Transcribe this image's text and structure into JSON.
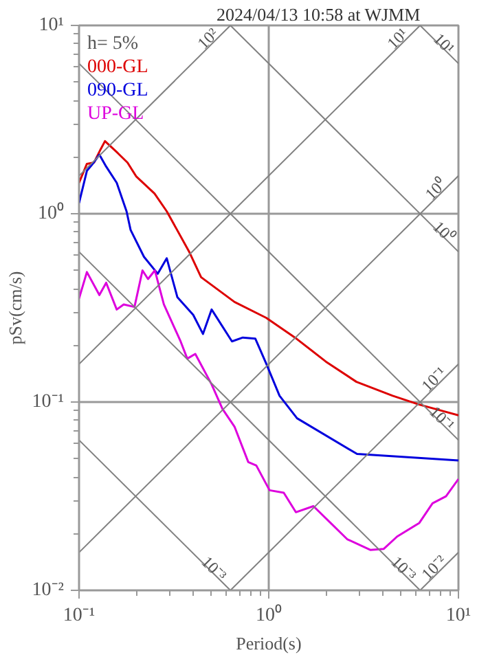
{
  "chart_data": {
    "type": "line",
    "title": "2024/04/13 10:58 at WJMM",
    "xlabel": "Period(s)",
    "ylabel": "pSv(cm/s)",
    "log": "xy",
    "grid": true,
    "legend": "top left",
    "xlim": [
      0.1,
      10
    ],
    "ylim": [
      0.01,
      10
    ],
    "xticks": [
      {
        "value": 0.1,
        "label": "10⁻¹"
      },
      {
        "value": 1,
        "label": "10⁰"
      },
      {
        "value": 10,
        "label": "10¹"
      }
    ],
    "yticks": [
      {
        "value": 0.01,
        "label": "10⁻²"
      },
      {
        "value": 0.1,
        "label": "10⁻¹"
      },
      {
        "value": 1,
        "label": "10⁰"
      },
      {
        "value": 10,
        "label": "10¹"
      }
    ],
    "annotations": [
      "h= 5%",
      {
        "text": "10²",
        "x": 0.628,
        "y": 10
      },
      {
        "text": "10¹",
        "x": 6.28,
        "y": 10
      },
      {
        "text": "10⁰",
        "x": 10,
        "y": 1.59
      },
      {
        "text": "10⁻¹",
        "x": 10,
        "y": 0.159
      },
      {
        "text": "10⁻²",
        "x": 10,
        "y": 0.0159
      },
      {
        "text": "10¹",
        "x": 10,
        "y": 6.28
      },
      {
        "text": "10⁰",
        "x": 10,
        "y": 0.628
      },
      {
        "text": "10⁻¹",
        "x": 10,
        "y": 0.0628
      },
      {
        "text": "10⁻³",
        "x": 6.28,
        "y": 0.01
      },
      {
        "text": "10⁻³",
        "x": 0.628,
        "y": 0.01
      }
    ],
    "series": [
      {
        "name": "000-GL",
        "color": "#dd0000",
        "x": [
          0.1,
          0.11,
          0.12,
          0.13,
          0.137,
          0.16,
          0.18,
          0.2,
          0.25,
          0.29,
          0.38,
          0.44,
          0.66,
          0.97,
          1.4,
          2.0,
          2.9,
          4.5,
          6.2,
          10
        ],
        "values": [
          1.46,
          1.84,
          1.87,
          2.2,
          2.43,
          2.1,
          1.87,
          1.58,
          1.28,
          1.03,
          0.63,
          0.46,
          0.34,
          0.28,
          0.217,
          0.164,
          0.128,
          0.108,
          0.097,
          0.085
        ]
      },
      {
        "name": "090-GL",
        "color": "#0000dd",
        "x": [
          0.1,
          0.11,
          0.118,
          0.128,
          0.139,
          0.158,
          0.178,
          0.187,
          0.22,
          0.26,
          0.29,
          0.33,
          0.4,
          0.45,
          0.5,
          0.64,
          0.73,
          0.85,
          0.97,
          1.14,
          1.41,
          2.92,
          10
        ],
        "values": [
          1.14,
          1.69,
          1.84,
          2.06,
          1.78,
          1.46,
          1.03,
          0.82,
          0.59,
          0.48,
          0.58,
          0.36,
          0.29,
          0.23,
          0.31,
          0.21,
          0.22,
          0.217,
          0.16,
          0.108,
          0.082,
          0.053,
          0.049
        ]
      },
      {
        "name": "UP-GL",
        "color": "#dd00dd",
        "x": [
          0.1,
          0.11,
          0.128,
          0.139,
          0.158,
          0.172,
          0.196,
          0.216,
          0.231,
          0.251,
          0.28,
          0.343,
          0.372,
          0.41,
          0.5,
          0.57,
          0.66,
          0.78,
          0.86,
          1.01,
          1.2,
          1.39,
          1.72,
          2.59,
          3.43,
          4.04,
          4.75,
          6.22,
          7.3,
          8.6,
          10
        ],
        "values": [
          0.355,
          0.49,
          0.37,
          0.43,
          0.31,
          0.33,
          0.32,
          0.5,
          0.45,
          0.5,
          0.33,
          0.21,
          0.17,
          0.18,
          0.124,
          0.092,
          0.074,
          0.048,
          0.046,
          0.034,
          0.033,
          0.026,
          0.028,
          0.0187,
          0.0164,
          0.0166,
          0.0193,
          0.0228,
          0.029,
          0.0316,
          0.039
        ]
      },
      {
        "color": "#808080",
        "x": [
          0.1,
          0.628
        ],
        "values": [
          1.59,
          10
        ]
      },
      {
        "color": "#808080",
        "x": [
          0.1,
          6.28
        ],
        "values": [
          0.159,
          10
        ]
      },
      {
        "color": "#808080",
        "x": [
          0.1,
          10
        ],
        "values": [
          0.0159,
          1.59
        ]
      },
      {
        "color": "#808080",
        "x": [
          0.628,
          10
        ],
        "values": [
          0.01,
          0.159
        ]
      },
      {
        "color": "#808080",
        "x": [
          6.28,
          10
        ],
        "values": [
          0.01,
          0.0159
        ]
      },
      {
        "color": "#808080",
        "x": [
          6.28,
          10
        ],
        "values": [
          10,
          6.28
        ]
      },
      {
        "color": "#808080",
        "x": [
          0.628,
          10
        ],
        "values": [
          10,
          0.628
        ]
      },
      {
        "color": "#808080",
        "x": [
          0.1,
          10
        ],
        "values": [
          6.28,
          0.0628
        ]
      },
      {
        "color": "#808080",
        "x": [
          0.1,
          6.28
        ],
        "values": [
          0.628,
          0.01
        ]
      },
      {
        "color": "#808080",
        "x": [
          0.1,
          0.628
        ],
        "values": [
          0.0628,
          0.01
        ]
      }
    ]
  }
}
